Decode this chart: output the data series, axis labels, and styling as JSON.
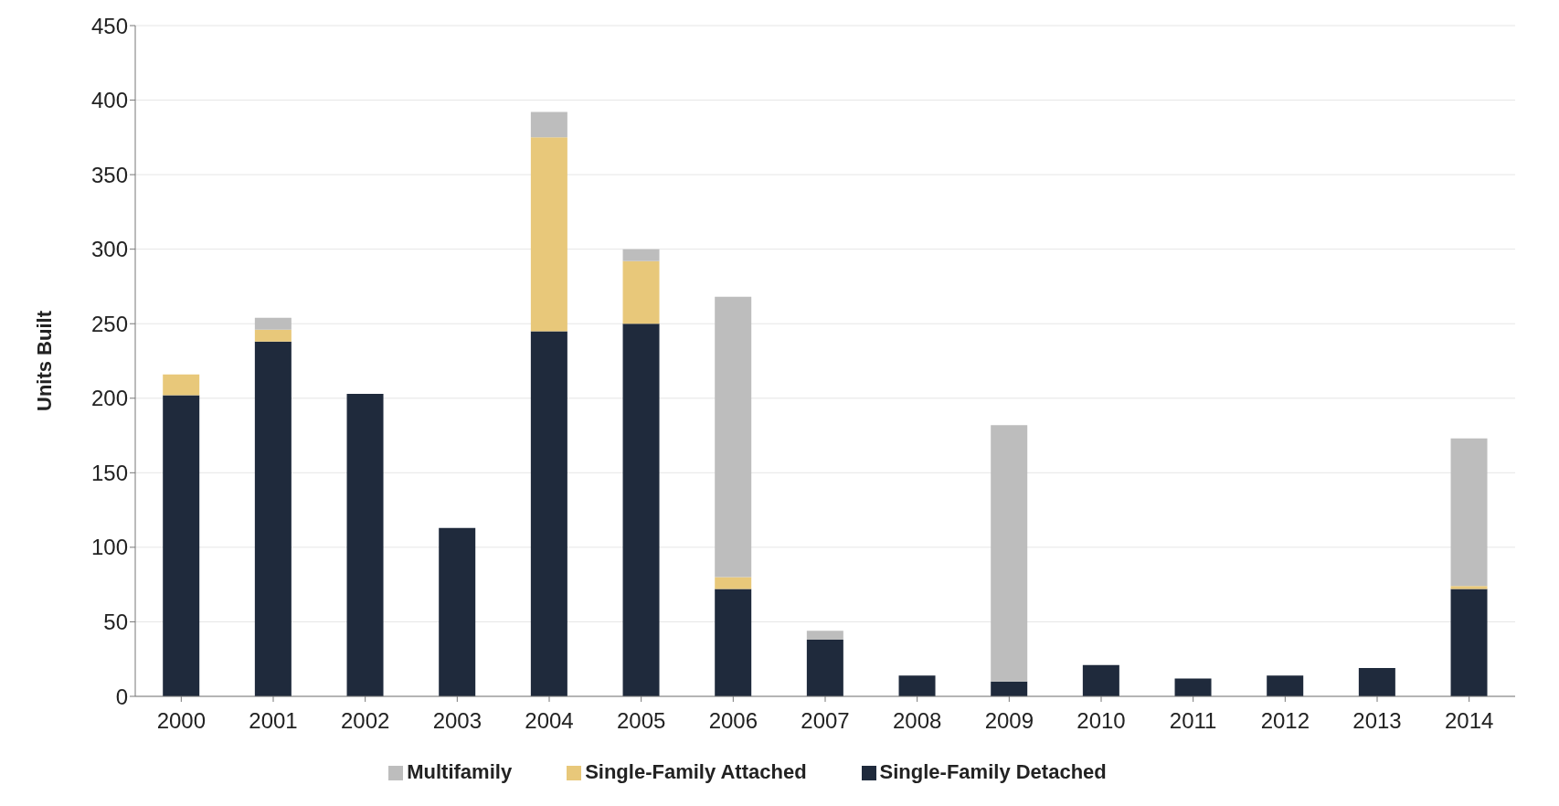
{
  "chart_data": {
    "type": "bar",
    "stacked": true,
    "ylabel": "Units Built",
    "categories": [
      "2000",
      "2001",
      "2002",
      "2003",
      "2004",
      "2005",
      "2006",
      "2007",
      "2008",
      "2009",
      "2010",
      "2011",
      "2012",
      "2013",
      "2014"
    ],
    "series": [
      {
        "name": "Single-Family Detached",
        "color": "#1f2a3c",
        "values": [
          202,
          238,
          203,
          113,
          245,
          250,
          72,
          38,
          14,
          10,
          21,
          12,
          14,
          19,
          72
        ]
      },
      {
        "name": "Single-Family Attached",
        "color": "#e8c87a",
        "values": [
          14,
          8,
          0,
          0,
          130,
          42,
          8,
          0,
          0,
          0,
          0,
          0,
          0,
          0,
          2
        ]
      },
      {
        "name": "Multifamily",
        "color": "#bdbdbd",
        "values": [
          0,
          8,
          0,
          0,
          17,
          8,
          188,
          6,
          0,
          172,
          0,
          0,
          0,
          0,
          99
        ]
      }
    ],
    "ylim": [
      0,
      450
    ],
    "yticks": [
      0,
      50,
      100,
      150,
      200,
      250,
      300,
      350,
      400,
      450
    ],
    "grid": "y",
    "legend": "bottom"
  }
}
